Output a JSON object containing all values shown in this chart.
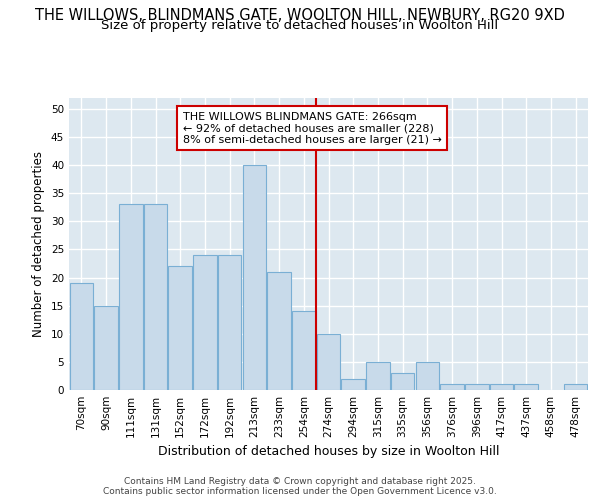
{
  "title_line1": "THE WILLOWS, BLINDMANS GATE, WOOLTON HILL, NEWBURY, RG20 9XD",
  "title_line2": "Size of property relative to detached houses in Woolton Hill",
  "xlabel": "Distribution of detached houses by size in Woolton Hill",
  "ylabel": "Number of detached properties",
  "categories": [
    "70sqm",
    "90sqm",
    "111sqm",
    "131sqm",
    "152sqm",
    "172sqm",
    "192sqm",
    "213sqm",
    "233sqm",
    "254sqm",
    "274sqm",
    "294sqm",
    "315sqm",
    "335sqm",
    "356sqm",
    "376sqm",
    "396sqm",
    "417sqm",
    "437sqm",
    "458sqm",
    "478sqm"
  ],
  "values": [
    19,
    15,
    33,
    33,
    22,
    24,
    24,
    40,
    21,
    14,
    10,
    2,
    5,
    3,
    5,
    1,
    1,
    1,
    1,
    0,
    1
  ],
  "bar_color": "#c8daea",
  "bar_edge_color": "#7aafd4",
  "vline_x_idx": 10,
  "vline_color": "#cc0000",
  "annotation_text": "THE WILLOWS BLINDMANS GATE: 266sqm\n← 92% of detached houses are smaller (228)\n8% of semi-detached houses are larger (21) →",
  "annotation_box_color": "#ffffff",
  "annotation_box_edge": "#cc0000",
  "ylim": [
    0,
    52
  ],
  "yticks": [
    0,
    5,
    10,
    15,
    20,
    25,
    30,
    35,
    40,
    45,
    50
  ],
  "background_color": "#dde8f0",
  "plot_bg_color": "#dde8f0",
  "footer_text": "Contains HM Land Registry data © Crown copyright and database right 2025.\nContains public sector information licensed under the Open Government Licence v3.0.",
  "grid_color": "#ffffff",
  "title_fontsize": 10.5,
  "subtitle_fontsize": 9.5,
  "ylabel_fontsize": 8.5,
  "xlabel_fontsize": 9,
  "tick_fontsize": 7.5,
  "annotation_fontsize": 8,
  "footer_fontsize": 6.5
}
